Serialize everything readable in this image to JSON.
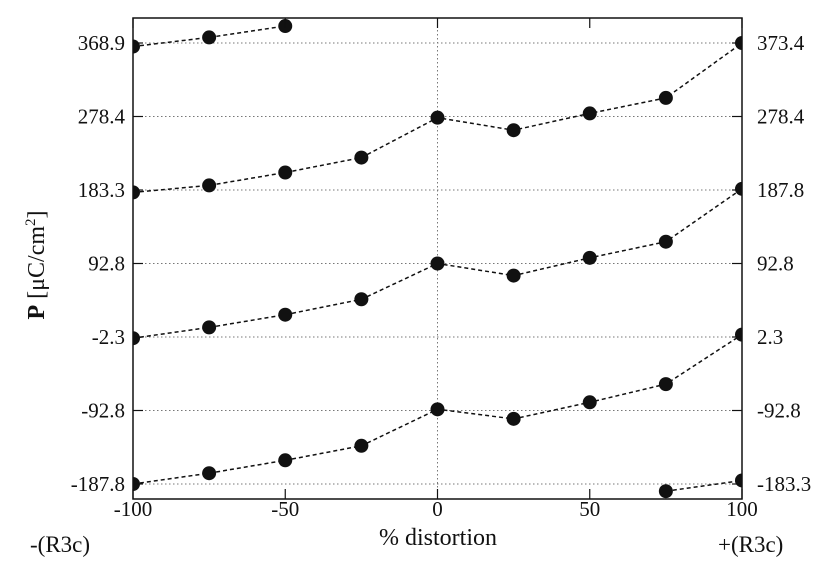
{
  "chart_data": {
    "type": "line",
    "title": "",
    "xlabel": "% distortion",
    "ylabel": {
      "main": "P",
      "unit_open": " [μC/cm",
      "unit_sup": "2",
      "unit_close": "]"
    },
    "xlim": [
      -100,
      100
    ],
    "ylim": [
      -187.8,
      373.4
    ],
    "x_ticks": [
      -100,
      -50,
      0,
      50,
      100
    ],
    "x_tick_labels": [
      "-100",
      "-50",
      "0",
      "50",
      "100"
    ],
    "x_end_labels": {
      "left": "-(R3c)",
      "right": "+(R3c)"
    },
    "y_ticks_left": [
      368.9,
      278.4,
      183.3,
      92.8,
      -2.3,
      -92.8,
      -187.8
    ],
    "y_tick_labels_left": [
      "368.9",
      "278.4",
      "183.3",
      "92.8",
      "-2.3",
      "-92.8",
      "-187.8"
    ],
    "y_ticks_right": [
      373.4,
      278.4,
      187.8,
      92.8,
      2.3,
      -92.8,
      -183.3
    ],
    "y_tick_labels_right": [
      "373.4",
      "278.4",
      "187.8",
      "92.8",
      "2.3",
      "-92.8",
      "-183.3"
    ],
    "grid": {
      "horizontal": true,
      "vertical_at_zero": true,
      "style": "dotted"
    },
    "legend": "none",
    "marker": "filled-circle",
    "line_style": "dashed",
    "color": "#111111",
    "series": [
      {
        "x": [
          -100,
          -75,
          -50
        ],
        "y": [
          368.9,
          380.5,
          395
        ]
      },
      {
        "x": [
          -100,
          -75,
          -50,
          -25,
          0,
          25,
          50,
          75,
          100
        ],
        "y": [
          183.3,
          192.2,
          208.6,
          227.6,
          278.4,
          262.4,
          283.8,
          303.5,
          373.4
        ]
      },
      {
        "x": [
          -100,
          -75,
          -50,
          -25,
          0,
          25,
          50,
          75,
          100
        ],
        "y": [
          -2.3,
          11.5,
          27.6,
          47.3,
          92.8,
          77.4,
          100,
          120.5,
          187.8
        ]
      },
      {
        "x": [
          -100,
          -75,
          -50,
          -25,
          0,
          25,
          50,
          75,
          100
        ],
        "y": [
          -187.8,
          -174.1,
          -157.6,
          -139.2,
          -92.8,
          -104.9,
          -83.8,
          -60.7,
          2.3
        ]
      },
      {
        "x": [
          75,
          100
        ],
        "y": [
          -197,
          -183.3
        ]
      }
    ]
  }
}
